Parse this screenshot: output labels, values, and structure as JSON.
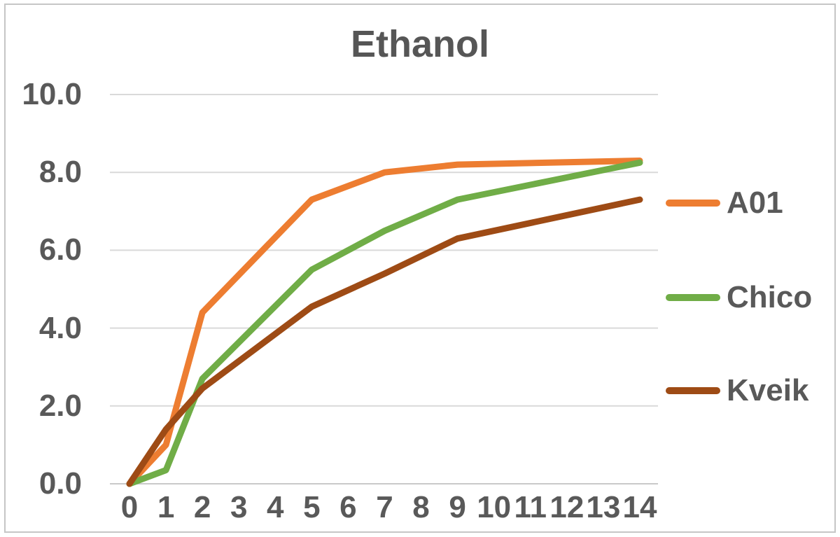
{
  "chart_data": {
    "type": "line",
    "title": "Ethanol",
    "xlabel": "",
    "ylabel": "",
    "x": [
      0,
      1,
      2,
      5,
      7,
      9,
      14
    ],
    "x_tick_labels": [
      "0",
      "1",
      "2",
      "3",
      "4",
      "5",
      "6",
      "7",
      "8",
      "9",
      "10",
      "11",
      "12",
      "13",
      "14"
    ],
    "y_ticks": [
      "0.0",
      "2.0",
      "4.0",
      "6.0",
      "8.0",
      "10.0"
    ],
    "xlim": [
      0,
      14
    ],
    "ylim": [
      0,
      10
    ],
    "grid": "horizontal",
    "legend_position": "right",
    "series": [
      {
        "name": "A01",
        "color": "#ED7D31",
        "values": [
          0.0,
          1.0,
          4.4,
          7.3,
          8.0,
          8.2,
          8.3
        ]
      },
      {
        "name": "Chico",
        "color": "#70AD47",
        "values": [
          0.0,
          0.35,
          2.7,
          5.5,
          6.5,
          7.3,
          8.25
        ]
      },
      {
        "name": "Kveik",
        "color": "#9E4B15",
        "values": [
          0.0,
          1.4,
          2.45,
          4.55,
          5.4,
          6.3,
          7.3
        ]
      }
    ],
    "styles": {
      "text_color": "#595959",
      "title_color": "#565656",
      "gridline_color": "#D9D9D9",
      "axis_line_color": "#C9C9C9",
      "border_color": "#C6C6C6",
      "background": "#FFFFFF"
    }
  }
}
